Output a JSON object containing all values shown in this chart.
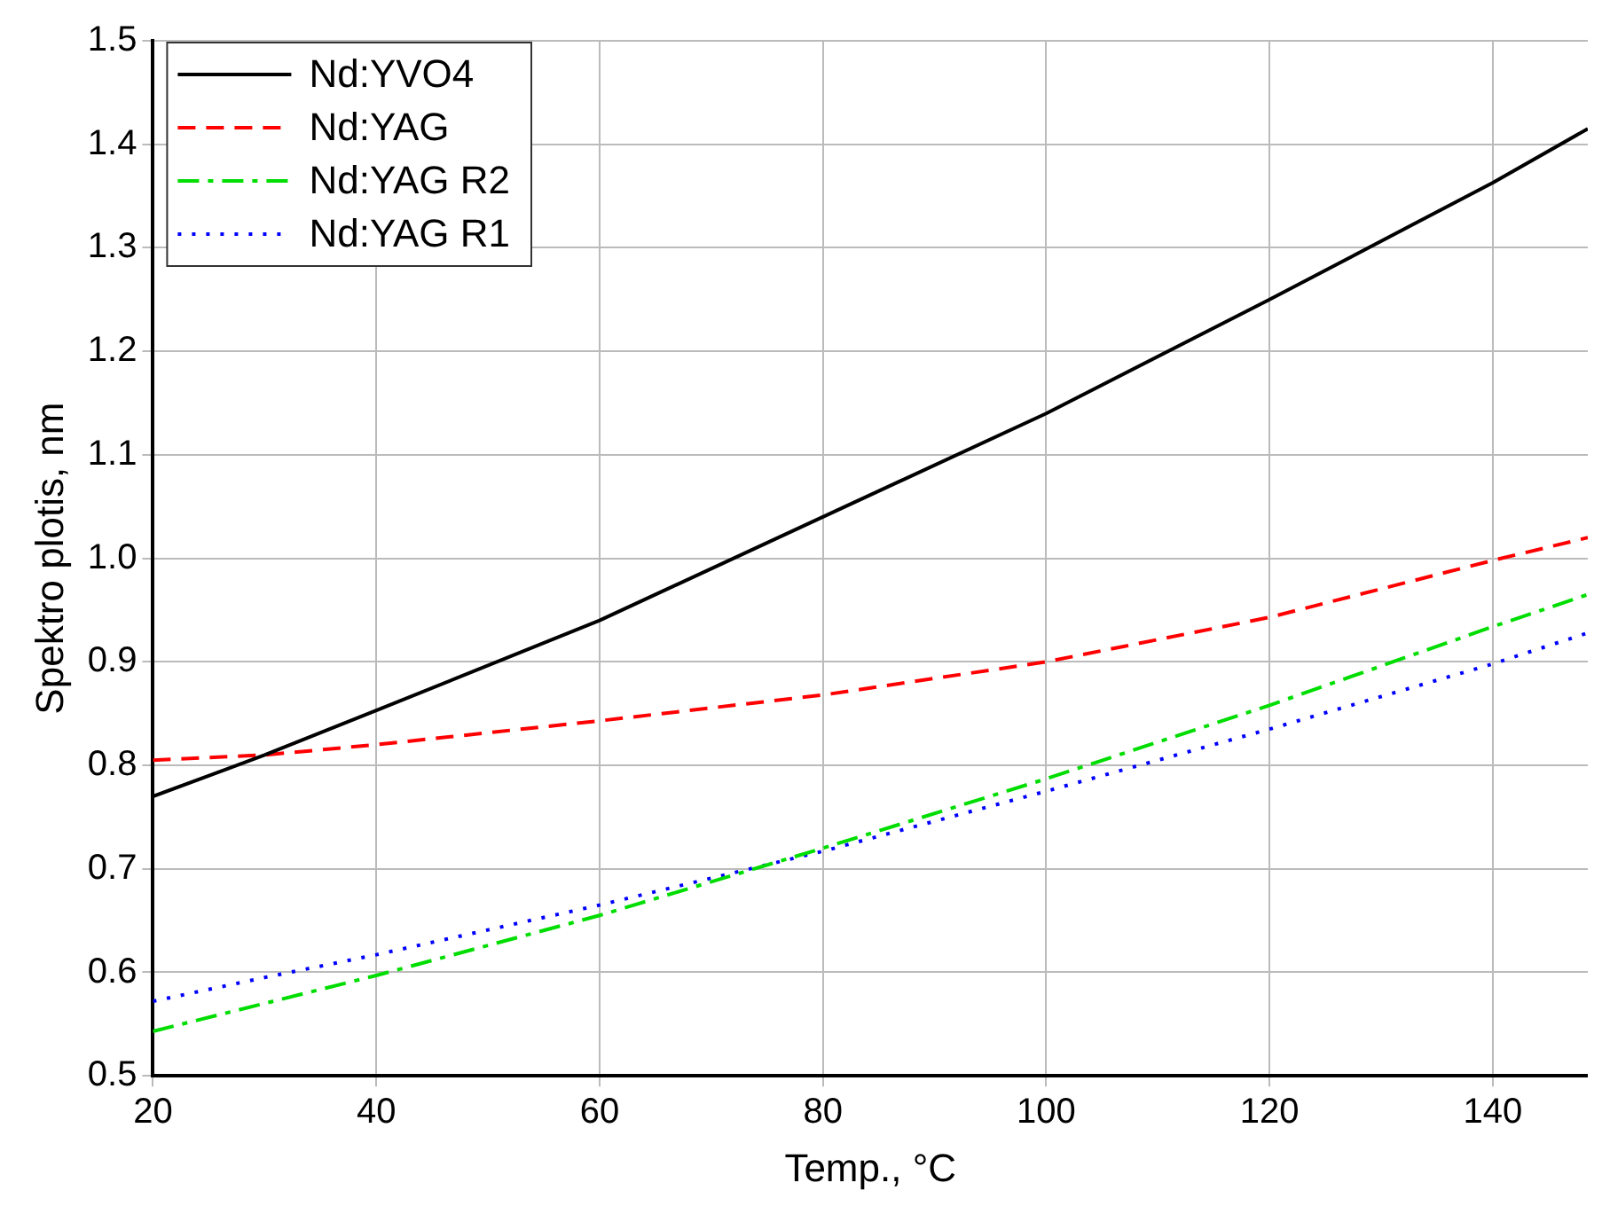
{
  "chart_data": {
    "type": "line",
    "xlabel": "Temp., °C",
    "ylabel": "Spektro plotis, nm",
    "x": [
      20,
      30,
      40,
      60,
      80,
      100,
      120,
      140,
      148.5
    ],
    "series": [
      {
        "name": "Nd:YVO4",
        "color": "#000000",
        "line_style": "solid",
        "values": [
          0.77,
          0.81,
          0.853,
          0.94,
          1.04,
          1.14,
          1.25,
          1.363,
          1.415
        ]
      },
      {
        "name": "Nd:YAG",
        "color": "#ff0000",
        "line_style": "dashed",
        "values": [
          0.805,
          0.81,
          0.82,
          0.843,
          0.868,
          0.9,
          0.943,
          0.998,
          1.02
        ]
      },
      {
        "name": "Nd:YAG R2",
        "color": "#00dd00",
        "line_style": "dashdot",
        "values": [
          0.543,
          0.57,
          0.597,
          0.655,
          0.72,
          0.787,
          0.858,
          0.934,
          0.965
        ]
      },
      {
        "name": "Nd:YAG R1",
        "color": "#0000ff",
        "line_style": "dotted",
        "values": [
          0.572,
          0.595,
          0.617,
          0.665,
          0.717,
          0.775,
          0.835,
          0.898,
          0.928
        ]
      }
    ],
    "xlim": [
      20,
      148.5
    ],
    "xticks": [
      20,
      40,
      60,
      80,
      100,
      120,
      140
    ],
    "ylim": [
      0.5,
      1.5
    ],
    "yticks": [
      {
        "value": 0.5,
        "label": "0.5"
      },
      {
        "value": 0.6,
        "label": "0.6"
      },
      {
        "value": 0.7,
        "label": "0.7"
      },
      {
        "value": 0.8,
        "label": "0.8"
      },
      {
        "value": 0.9,
        "label": "0.9"
      },
      {
        "value": 1.0,
        "label": "1.0"
      },
      {
        "value": 1.1,
        "label": "1.1"
      },
      {
        "value": 1.2,
        "label": "1.2"
      },
      {
        "value": 1.3,
        "label": "1.3"
      },
      {
        "value": 1.4,
        "label": "1.4"
      },
      {
        "value": 1.5,
        "label": "1.5"
      }
    ],
    "grid": true,
    "legend": "top left",
    "marker": "none"
  }
}
